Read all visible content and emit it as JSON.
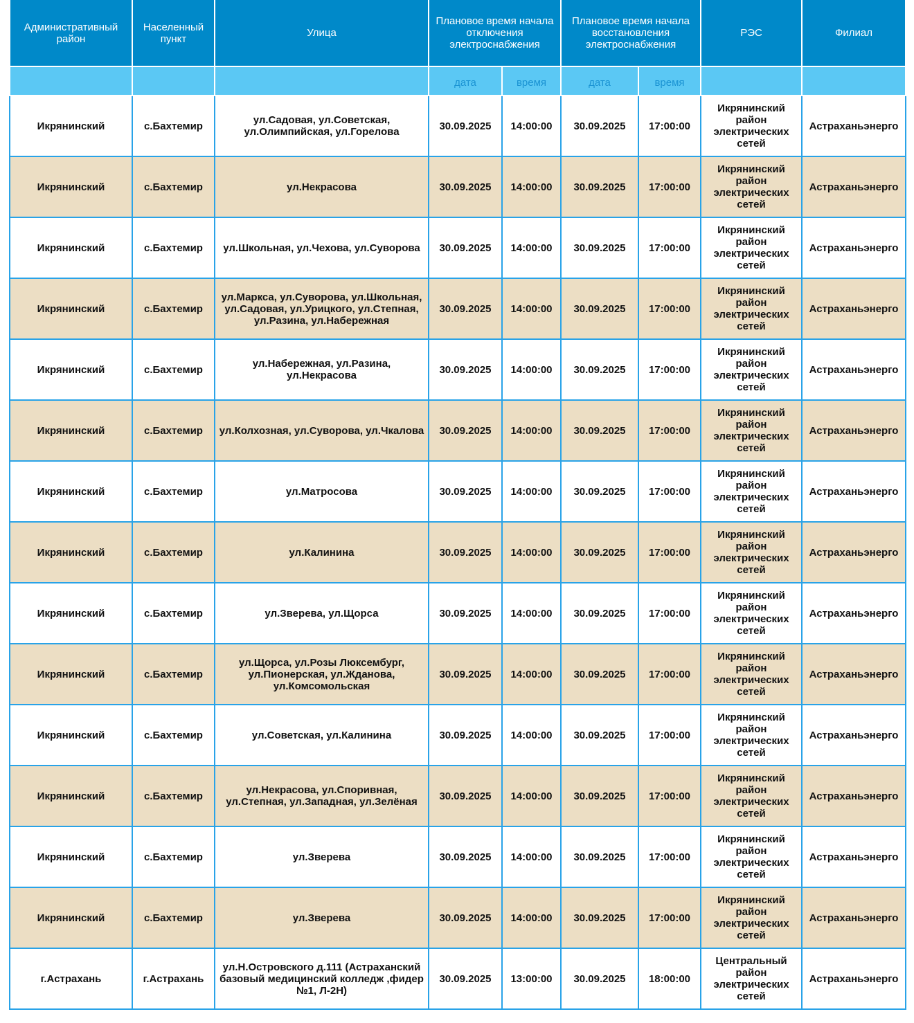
{
  "header": {
    "district": "Административный район",
    "locality": "Населенный пункт",
    "street": "Улица",
    "off_start": "Плановое время начала отключения электроснабжения",
    "restore": "Плановое время начала восстановления электроснабжения",
    "res": "РЭС",
    "branch": "Филиал",
    "date": "дата",
    "time": "время"
  },
  "colors": {
    "header": "#0089c9",
    "subheader": "#5bc8f4",
    "alt_row": "#ecdec4",
    "border": "#29a3e8"
  },
  "rows": [
    {
      "district": "Икрянинский",
      "locality": "с.Бахтемир",
      "street": "ул.Садовая, ул.Советская, ул.Олимпийская, ул.Горелова",
      "off_date": "30.09.2025",
      "off_time": "14:00:00",
      "on_date": "30.09.2025",
      "on_time": "17:00:00",
      "res": "Икрянинский район электрических сетей",
      "branch": "Астраханьэнерго"
    },
    {
      "district": "Икрянинский",
      "locality": "с.Бахтемир",
      "street": "ул.Некрасова",
      "off_date": "30.09.2025",
      "off_time": "14:00:00",
      "on_date": "30.09.2025",
      "on_time": "17:00:00",
      "res": "Икрянинский район электрических сетей",
      "branch": "Астраханьэнерго"
    },
    {
      "district": "Икрянинский",
      "locality": "с.Бахтемир",
      "street": "ул.Школьная, ул.Чехова, ул.Суворова",
      "off_date": "30.09.2025",
      "off_time": "14:00:00",
      "on_date": "30.09.2025",
      "on_time": "17:00:00",
      "res": "Икрянинский район электрических сетей",
      "branch": "Астраханьэнерго"
    },
    {
      "district": "Икрянинский",
      "locality": "с.Бахтемир",
      "street": "ул.Маркса, ул.Суворова, ул.Школьная, ул.Садовая, ул.Урицкого, ул.Степная, ул.Разина, ул.Набережная",
      "off_date": "30.09.2025",
      "off_time": "14:00:00",
      "on_date": "30.09.2025",
      "on_time": "17:00:00",
      "res": "Икрянинский район электрических сетей",
      "branch": "Астраханьэнерго"
    },
    {
      "district": "Икрянинский",
      "locality": "с.Бахтемир",
      "street": "ул.Набережная, ул.Разина, ул.Некрасова",
      "off_date": "30.09.2025",
      "off_time": "14:00:00",
      "on_date": "30.09.2025",
      "on_time": "17:00:00",
      "res": "Икрянинский район электрических сетей",
      "branch": "Астраханьэнерго"
    },
    {
      "district": "Икрянинский",
      "locality": "с.Бахтемир",
      "street": "ул.Колхозная, ул.Суворова, ул.Чкалова",
      "off_date": "30.09.2025",
      "off_time": "14:00:00",
      "on_date": "30.09.2025",
      "on_time": "17:00:00",
      "res": "Икрянинский район электрических сетей",
      "branch": "Астраханьэнерго"
    },
    {
      "district": "Икрянинский",
      "locality": "с.Бахтемир",
      "street": "ул.Матросова",
      "off_date": "30.09.2025",
      "off_time": "14:00:00",
      "on_date": "30.09.2025",
      "on_time": "17:00:00",
      "res": "Икрянинский район электрических сетей",
      "branch": "Астраханьэнерго"
    },
    {
      "district": "Икрянинский",
      "locality": "с.Бахтемир",
      "street": "ул.Калинина",
      "off_date": "30.09.2025",
      "off_time": "14:00:00",
      "on_date": "30.09.2025",
      "on_time": "17:00:00",
      "res": "Икрянинский район электрических сетей",
      "branch": "Астраханьэнерго"
    },
    {
      "district": "Икрянинский",
      "locality": "с.Бахтемир",
      "street": "ул.Зверева, ул.Щорса",
      "off_date": "30.09.2025",
      "off_time": "14:00:00",
      "on_date": "30.09.2025",
      "on_time": "17:00:00",
      "res": "Икрянинский район электрических сетей",
      "branch": "Астраханьэнерго"
    },
    {
      "district": "Икрянинский",
      "locality": "с.Бахтемир",
      "street": "ул.Щорса, ул.Розы Люксембург, ул.Пионерская, ул.Жданова, ул.Комсомольская",
      "off_date": "30.09.2025",
      "off_time": "14:00:00",
      "on_date": "30.09.2025",
      "on_time": "17:00:00",
      "res": "Икрянинский район электрических сетей",
      "branch": "Астраханьэнерго"
    },
    {
      "district": "Икрянинский",
      "locality": "с.Бахтемир",
      "street": "ул.Советская, ул.Калинина",
      "off_date": "30.09.2025",
      "off_time": "14:00:00",
      "on_date": "30.09.2025",
      "on_time": "17:00:00",
      "res": "Икрянинский район электрических сетей",
      "branch": "Астраханьэнерго"
    },
    {
      "district": "Икрянинский",
      "locality": "с.Бахтемир",
      "street": "ул.Некрасова, ул.Споривная, ул.Степная, ул.Западная, ул.Зелёная",
      "off_date": "30.09.2025",
      "off_time": "14:00:00",
      "on_date": "30.09.2025",
      "on_time": "17:00:00",
      "res": "Икрянинский район электрических сетей",
      "branch": "Астраханьэнерго"
    },
    {
      "district": "Икрянинский",
      "locality": "с.Бахтемир",
      "street": "ул.Зверева",
      "off_date": "30.09.2025",
      "off_time": "14:00:00",
      "on_date": "30.09.2025",
      "on_time": "17:00:00",
      "res": "Икрянинский район электрических сетей",
      "branch": "Астраханьэнерго"
    },
    {
      "district": "Икрянинский",
      "locality": "с.Бахтемир",
      "street": "ул.Зверева",
      "off_date": "30.09.2025",
      "off_time": "14:00:00",
      "on_date": "30.09.2025",
      "on_time": "17:00:00",
      "res": "Икрянинский район электрических сетей",
      "branch": "Астраханьэнерго"
    },
    {
      "district": "г.Астрахань",
      "locality": "г.Астрахань",
      "street": "ул.Н.Островского д.111 (Астраханский базовый медицинский колледж ,фидер №1, Л-2Н)",
      "off_date": "30.09.2025",
      "off_time": "13:00:00",
      "on_date": "30.09.2025",
      "on_time": "18:00:00",
      "res": "Центральный район электрических сетей",
      "branch": "Астраханьэнерго"
    }
  ]
}
